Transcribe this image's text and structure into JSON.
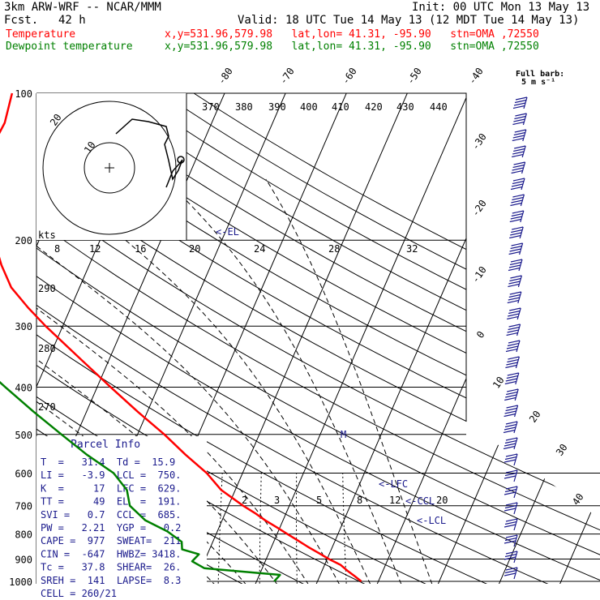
{
  "header": {
    "model": "3km ARW-WRF -- NCAR/MMM",
    "init": "Init: 00 UTC Mon 13 May 13",
    "fcst_label": "Fcst.",
    "fcst_value": "42 h",
    "valid": "Valid: 18 UTC Tue 14 May 13 (12 MDT Tue 14 May 13)",
    "temp_label": "Temperature",
    "dew_label": "Dewpoint temperature",
    "temp_info": "x,y=531.96,579.98   lat,lon= 41.31, -95.90   stn=OMA ,72550",
    "dew_info": "x,y=531.96,579.98   lat,lon= 41.31, -95.90   stn=OMA ,72550"
  },
  "colors": {
    "temperature": "#ff0000",
    "dewpoint": "#008000",
    "parcel_text": "#1a1a8c"
  },
  "hodograph": {
    "units_label": "kts",
    "ring_labels": [
      "20",
      "10"
    ],
    "speed_scale_labels": [
      "8",
      "12",
      "16",
      "20",
      "24",
      "28",
      "32"
    ]
  },
  "wind_key": {
    "line1": "Full barb:",
    "line2": "5 m s⁻¹"
  },
  "annotations": {
    "el": "<-EL",
    "lfc": "<-LFC",
    "ccl": "<-CCL",
    "lcl": "<-LCL",
    "m": "M"
  },
  "parcel": {
    "title": "Parcel Info",
    "rows": [
      "T  =   31.4  Td =  15.9",
      "LI =   -3.9  LCL =  750.",
      "K  =     17  LFC =  629.",
      "TT =     49  EL  =  191.",
      "SVI =   0.7  CCL =  685.",
      "PW =   2.21  YGP =   0.2",
      "CAPE =  977  SWEAT=  211",
      "CIN =  -647  HWBZ= 3418.",
      "Tc =   37.8  SHEAR=  26.",
      "SREH =  141  LAPSE=  8.3",
      "CELL = 260/21"
    ]
  },
  "chart_data": {
    "type": "line",
    "title": "",
    "xlabel": "",
    "ylabel": "",
    "pressure_axis": [
      100,
      200,
      300,
      400,
      500,
      600,
      700,
      800,
      900,
      1000
    ],
    "pressure_labels": [
      "100",
      "200",
      "300",
      "400",
      "500",
      "600",
      "700",
      "800",
      "900",
      "1000"
    ],
    "isotherm_labels": [
      "-80",
      "-70",
      "-60",
      "-50",
      "-40",
      "-30",
      "-20",
      "-10",
      "0",
      "10",
      "20",
      "30",
      "40"
    ],
    "theta_labels": [
      "370",
      "380",
      "390",
      "400",
      "410",
      "420",
      "430",
      "440",
      "290",
      "280",
      "270"
    ],
    "mixing_ratio_labels": [
      "2",
      "3",
      "5",
      "8",
      "12",
      "20"
    ],
    "series": [
      {
        "name": "Temperature",
        "points": [
          [
            1000,
            27.2
          ],
          [
            975,
            25.7
          ],
          [
            950,
            24.1
          ],
          [
            925,
            22.6
          ],
          [
            900,
            20.3
          ],
          [
            875,
            18.2
          ],
          [
            850,
            16.0
          ],
          [
            825,
            13.9
          ],
          [
            800,
            11.7
          ],
          [
            775,
            9.5
          ],
          [
            750,
            7.1
          ],
          [
            725,
            4.9
          ],
          [
            700,
            2.4
          ],
          [
            650,
            -2.3
          ],
          [
            600,
            -5.9
          ],
          [
            550,
            -10.7
          ],
          [
            500,
            -15.6
          ],
          [
            450,
            -21.5
          ],
          [
            400,
            -27.8
          ],
          [
            350,
            -34.8
          ],
          [
            300,
            -42.8
          ],
          [
            275,
            -47.0
          ],
          [
            250,
            -51.2
          ],
          [
            225,
            -54.4
          ],
          [
            200,
            -57.4
          ],
          [
            175,
            -60.9
          ],
          [
            150,
            -65.3
          ],
          [
            130,
            -64.4
          ],
          [
            115,
            -64.0
          ],
          [
            100,
            -64.9
          ]
        ]
      },
      {
        "name": "Dewpoint temperature",
        "points": [
          [
            1000,
            12.9
          ],
          [
            970,
            13.4
          ],
          [
            960,
            9.0
          ],
          [
            940,
            0.5
          ],
          [
            910,
            -2.0
          ],
          [
            880,
            -1.4
          ],
          [
            860,
            -4.5
          ],
          [
            830,
            -5.1
          ],
          [
            790,
            -8.2
          ],
          [
            750,
            -12.6
          ],
          [
            700,
            -16.2
          ],
          [
            650,
            -17.8
          ],
          [
            600,
            -21.2
          ],
          [
            550,
            -26.9
          ],
          [
            500,
            -32.5
          ],
          [
            450,
            -38.6
          ],
          [
            400,
            -45.1
          ],
          [
            350,
            -52.3
          ],
          [
            300,
            -60.0
          ],
          [
            280,
            -63.5
          ],
          [
            250,
            -66.6
          ],
          [
            230,
            -71.3
          ],
          [
            200,
            -76.3
          ],
          [
            170,
            -81.5
          ],
          [
            140,
            -87.2
          ],
          [
            120,
            -91.1
          ],
          [
            100,
            -95.8
          ]
        ]
      }
    ]
  }
}
